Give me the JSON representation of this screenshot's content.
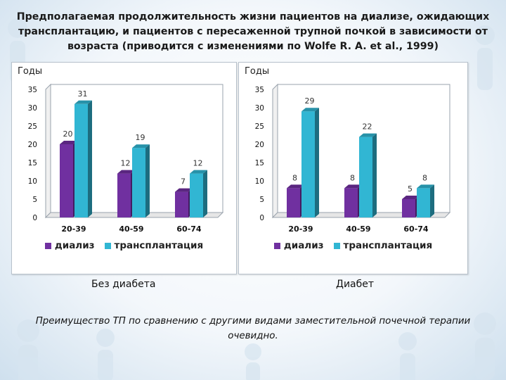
{
  "title": "Предполагаемая продолжительность жизни пациентов на диализе, ожидающих трансплантацию, и пациентов с пересаженной трупной почкой в зависимости от возраста (приводится с изменениями по Wolfe R. A. et al., 1999)",
  "colors": {
    "dialysis": "#7030a0",
    "transplant": "#31b6d3",
    "panel_border": "#b8c2cc"
  },
  "chart_data": [
    {
      "type": "bar",
      "ylabel": "Годы",
      "ylim": [
        0,
        35
      ],
      "yticks": [
        0,
        5,
        10,
        15,
        20,
        25,
        30,
        35
      ],
      "categories": [
        "20-39",
        "40-59",
        "60-74"
      ],
      "series": [
        {
          "name": "диализ",
          "values": [
            20,
            12,
            7
          ]
        },
        {
          "name": "трансплантация",
          "values": [
            31,
            19,
            12
          ]
        }
      ],
      "caption": "Без диабета",
      "grid": false,
      "legend": "bottom"
    },
    {
      "type": "bar",
      "ylabel": "Годы",
      "ylim": [
        0,
        35
      ],
      "yticks": [
        0,
        5,
        10,
        15,
        20,
        25,
        30,
        35
      ],
      "categories": [
        "20-39",
        "40-59",
        "60-74"
      ],
      "series": [
        {
          "name": "диализ",
          "values": [
            8,
            8,
            5
          ]
        },
        {
          "name": "трансплантация",
          "values": [
            29,
            22,
            8
          ]
        }
      ],
      "caption": "Диабет",
      "grid": false,
      "legend": "bottom"
    }
  ],
  "note": "Преимущество ТП по сравнению с другими видами заместительной почечной терапии очевидно."
}
